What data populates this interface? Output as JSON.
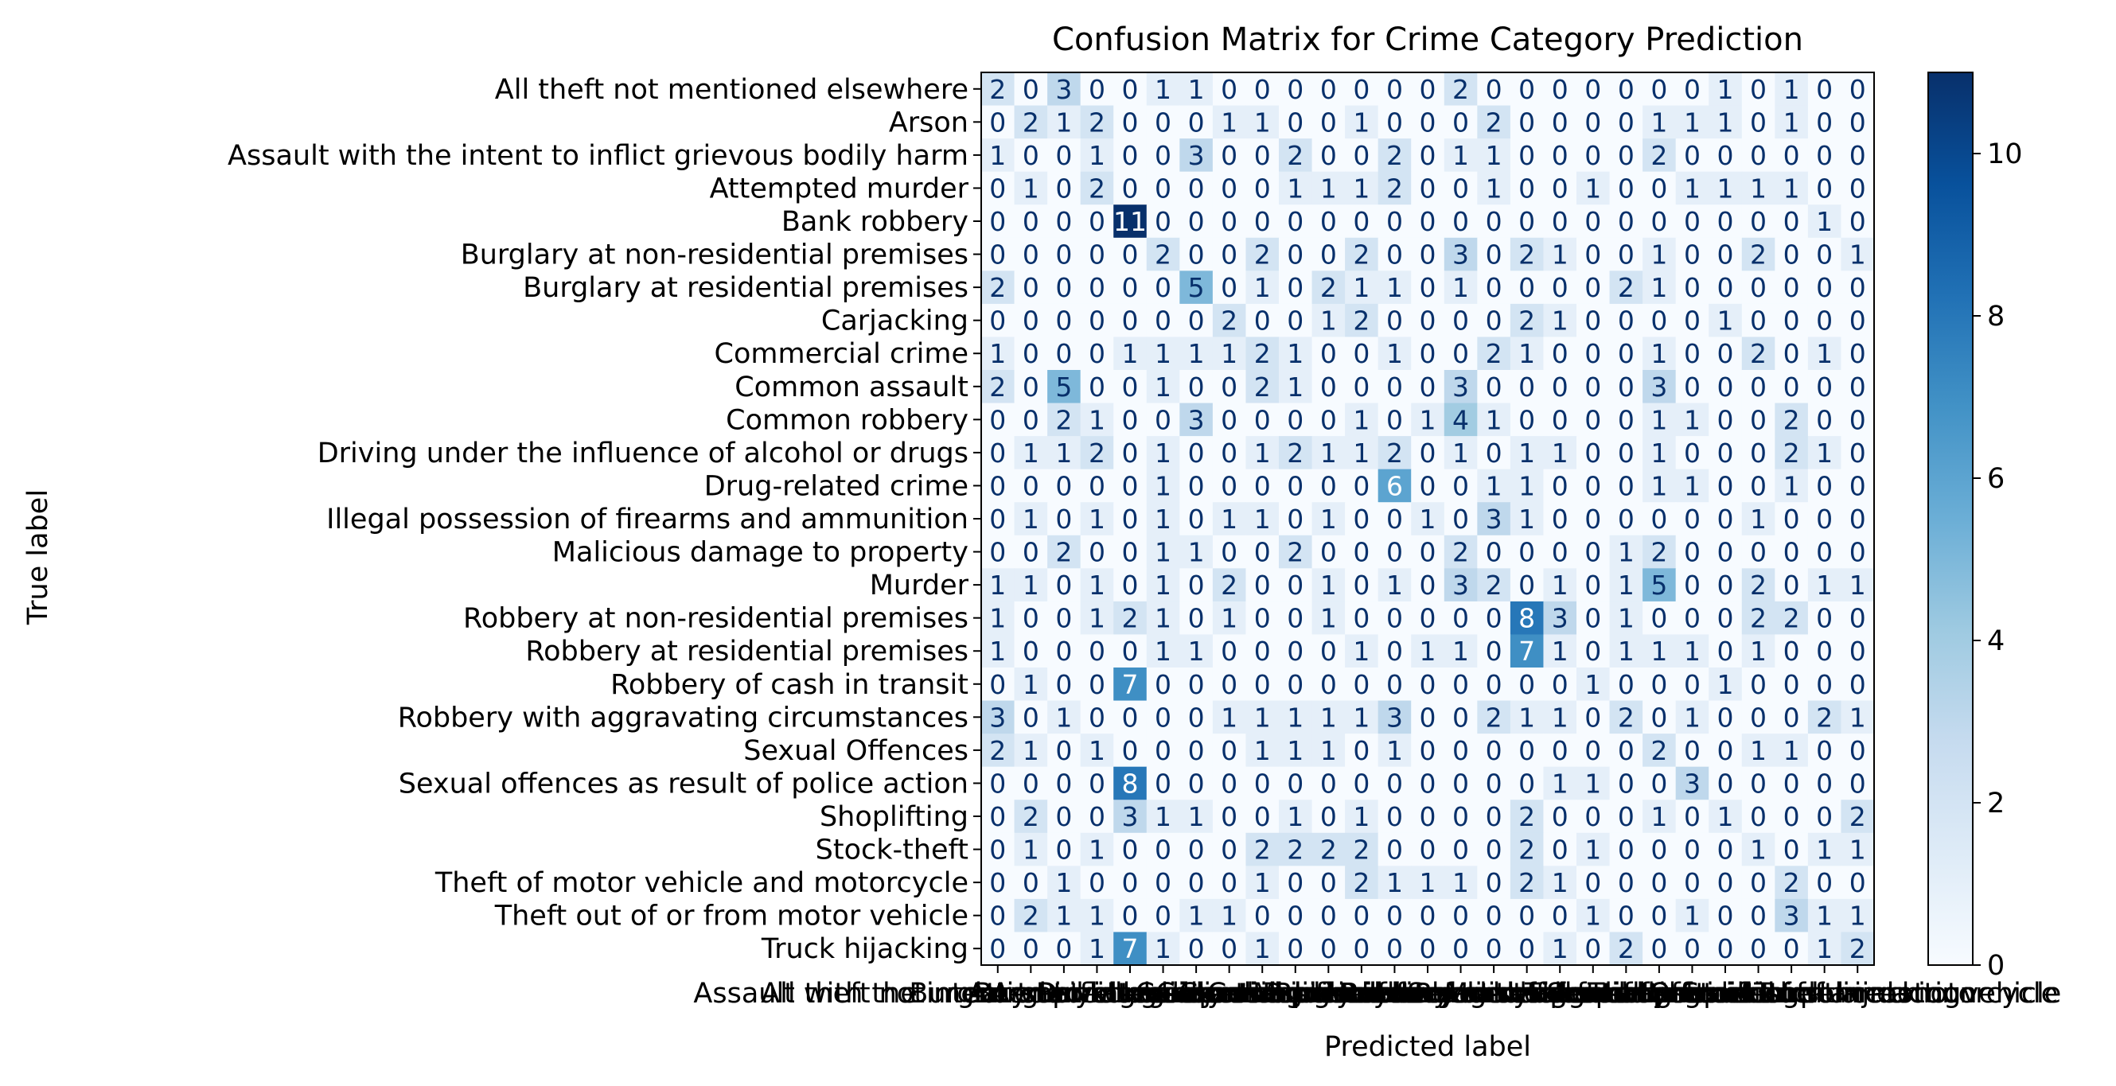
{
  "chart_data": {
    "type": "heatmap",
    "title": "Confusion Matrix for Crime Category Prediction",
    "xlabel": "Predicted label",
    "ylabel": "True label",
    "labels": [
      "All theft not mentioned elsewhere",
      "Arson",
      "Assault with the intent to inflict grievous bodily harm",
      "Attempted murder",
      "Bank robbery",
      "Burglary at non-residential premises",
      "Burglary at residential premises",
      "Carjacking",
      "Commercial crime",
      "Common assault",
      "Common robbery",
      "Driving under the influence of alcohol or drugs",
      "Drug-related crime",
      "Illegal possession of firearms and ammunition",
      "Malicious damage to property",
      "Murder",
      "Robbery at non-residential premises",
      "Robbery at residential premises",
      "Robbery of cash in transit",
      "Robbery with aggravating circumstances",
      "Sexual Offences",
      "Sexual offences as result of police action",
      "Shoplifting",
      "Stock-theft",
      "Theft of motor vehicle and motorcycle",
      "Theft out of or from motor vehicle",
      "Truck hijacking"
    ],
    "matrix": [
      [
        2,
        0,
        3,
        0,
        0,
        1,
        1,
        0,
        0,
        0,
        0,
        0,
        0,
        0,
        2,
        0,
        0,
        0,
        0,
        0,
        0,
        0,
        1,
        0,
        1,
        0,
        0
      ],
      [
        0,
        2,
        1,
        2,
        0,
        0,
        0,
        1,
        1,
        0,
        0,
        1,
        0,
        0,
        0,
        2,
        0,
        0,
        0,
        0,
        1,
        1,
        1,
        0,
        1,
        0,
        0
      ],
      [
        1,
        0,
        0,
        1,
        0,
        0,
        3,
        0,
        0,
        2,
        0,
        0,
        2,
        0,
        1,
        1,
        0,
        0,
        0,
        0,
        2,
        0,
        0,
        0,
        0,
        0,
        0
      ],
      [
        0,
        1,
        0,
        2,
        0,
        0,
        0,
        0,
        0,
        1,
        1,
        1,
        2,
        0,
        0,
        1,
        0,
        0,
        1,
        0,
        0,
        1,
        1,
        1,
        1,
        0,
        0
      ],
      [
        0,
        0,
        0,
        0,
        11,
        0,
        0,
        0,
        0,
        0,
        0,
        0,
        0,
        0,
        0,
        0,
        0,
        0,
        0,
        0,
        0,
        0,
        0,
        0,
        0,
        1,
        0
      ],
      [
        0,
        0,
        0,
        0,
        0,
        2,
        0,
        0,
        2,
        0,
        0,
        2,
        0,
        0,
        3,
        0,
        2,
        1,
        0,
        0,
        1,
        0,
        0,
        2,
        0,
        0,
        1
      ],
      [
        2,
        0,
        0,
        0,
        0,
        0,
        5,
        0,
        1,
        0,
        2,
        1,
        1,
        0,
        1,
        0,
        0,
        0,
        0,
        2,
        1,
        0,
        0,
        0,
        0,
        0,
        0
      ],
      [
        0,
        0,
        0,
        0,
        0,
        0,
        0,
        2,
        0,
        0,
        1,
        2,
        0,
        0,
        0,
        0,
        2,
        1,
        0,
        0,
        0,
        0,
        1,
        0,
        0,
        0,
        0
      ],
      [
        1,
        0,
        0,
        0,
        1,
        1,
        1,
        1,
        2,
        1,
        0,
        0,
        1,
        0,
        0,
        2,
        1,
        0,
        0,
        0,
        1,
        0,
        0,
        2,
        0,
        1,
        0
      ],
      [
        2,
        0,
        5,
        0,
        0,
        1,
        0,
        0,
        2,
        1,
        0,
        0,
        0,
        0,
        3,
        0,
        0,
        0,
        0,
        0,
        3,
        0,
        0,
        0,
        0,
        0,
        0
      ],
      [
        0,
        0,
        2,
        1,
        0,
        0,
        3,
        0,
        0,
        0,
        0,
        1,
        0,
        1,
        4,
        1,
        0,
        0,
        0,
        0,
        1,
        1,
        0,
        0,
        2,
        0,
        0
      ],
      [
        0,
        1,
        1,
        2,
        0,
        1,
        0,
        0,
        1,
        2,
        1,
        1,
        2,
        0,
        1,
        0,
        1,
        1,
        0,
        0,
        1,
        0,
        0,
        0,
        2,
        1,
        0
      ],
      [
        0,
        0,
        0,
        0,
        0,
        1,
        0,
        0,
        0,
        0,
        0,
        0,
        6,
        0,
        0,
        1,
        1,
        0,
        0,
        0,
        1,
        1,
        0,
        0,
        1,
        0,
        0
      ],
      [
        0,
        1,
        0,
        1,
        0,
        1,
        0,
        1,
        1,
        0,
        1,
        0,
        0,
        1,
        0,
        3,
        1,
        0,
        0,
        0,
        0,
        0,
        0,
        1,
        0,
        0,
        0
      ],
      [
        0,
        0,
        2,
        0,
        0,
        1,
        1,
        0,
        0,
        2,
        0,
        0,
        0,
        0,
        2,
        0,
        0,
        0,
        0,
        1,
        2,
        0,
        0,
        0,
        0,
        0,
        0
      ],
      [
        1,
        1,
        0,
        1,
        0,
        1,
        0,
        2,
        0,
        0,
        1,
        0,
        1,
        0,
        3,
        2,
        0,
        1,
        0,
        1,
        5,
        0,
        0,
        2,
        0,
        1,
        1
      ],
      [
        1,
        0,
        0,
        1,
        2,
        1,
        0,
        1,
        0,
        0,
        1,
        0,
        0,
        0,
        0,
        0,
        8,
        3,
        0,
        1,
        0,
        0,
        0,
        2,
        2,
        0,
        0
      ],
      [
        1,
        0,
        0,
        0,
        0,
        1,
        1,
        0,
        0,
        0,
        0,
        1,
        0,
        1,
        1,
        0,
        7,
        1,
        0,
        1,
        1,
        1,
        0,
        1,
        0,
        0,
        0
      ],
      [
        0,
        1,
        0,
        0,
        7,
        0,
        0,
        0,
        0,
        0,
        0,
        0,
        0,
        0,
        0,
        0,
        0,
        0,
        1,
        0,
        0,
        0,
        1,
        0,
        0,
        0,
        0
      ],
      [
        3,
        0,
        1,
        0,
        0,
        0,
        0,
        1,
        1,
        1,
        1,
        1,
        3,
        0,
        0,
        2,
        1,
        1,
        0,
        2,
        0,
        1,
        0,
        0,
        0,
        2,
        1
      ],
      [
        2,
        1,
        0,
        1,
        0,
        0,
        0,
        0,
        1,
        1,
        1,
        0,
        1,
        0,
        0,
        0,
        0,
        0,
        0,
        0,
        2,
        0,
        0,
        1,
        1,
        0,
        0
      ],
      [
        0,
        0,
        0,
        0,
        8,
        0,
        0,
        0,
        0,
        0,
        0,
        0,
        0,
        0,
        0,
        0,
        0,
        1,
        1,
        0,
        0,
        3,
        0,
        0,
        0,
        0,
        0
      ],
      [
        0,
        2,
        0,
        0,
        3,
        1,
        1,
        0,
        0,
        1,
        0,
        1,
        0,
        0,
        0,
        0,
        2,
        0,
        0,
        0,
        1,
        0,
        1,
        0,
        0,
        0,
        2
      ],
      [
        0,
        1,
        0,
        1,
        0,
        0,
        0,
        0,
        2,
        2,
        2,
        2,
        0,
        0,
        0,
        0,
        2,
        0,
        1,
        0,
        0,
        0,
        0,
        1,
        0,
        1,
        1
      ],
      [
        0,
        0,
        1,
        0,
        0,
        0,
        0,
        0,
        1,
        0,
        0,
        2,
        1,
        1,
        1,
        0,
        2,
        1,
        0,
        0,
        0,
        0,
        0,
        0,
        2,
        0,
        0
      ],
      [
        0,
        2,
        1,
        1,
        0,
        0,
        1,
        1,
        0,
        0,
        0,
        0,
        0,
        0,
        0,
        0,
        0,
        0,
        1,
        0,
        0,
        1,
        0,
        0,
        3,
        1,
        1
      ],
      [
        0,
        0,
        0,
        1,
        7,
        1,
        0,
        0,
        1,
        0,
        0,
        0,
        0,
        0,
        0,
        0,
        0,
        1,
        0,
        2,
        0,
        0,
        0,
        0,
        0,
        1,
        2
      ]
    ],
    "colorscale": "Blues",
    "colorbar_range": [
      0,
      11
    ],
    "colorbar_ticks": [
      0,
      2,
      4,
      6,
      8,
      10
    ],
    "colors": {
      "low": "#f7fbff",
      "high": "#08306b"
    },
    "text_color_threshold": 5.5
  }
}
